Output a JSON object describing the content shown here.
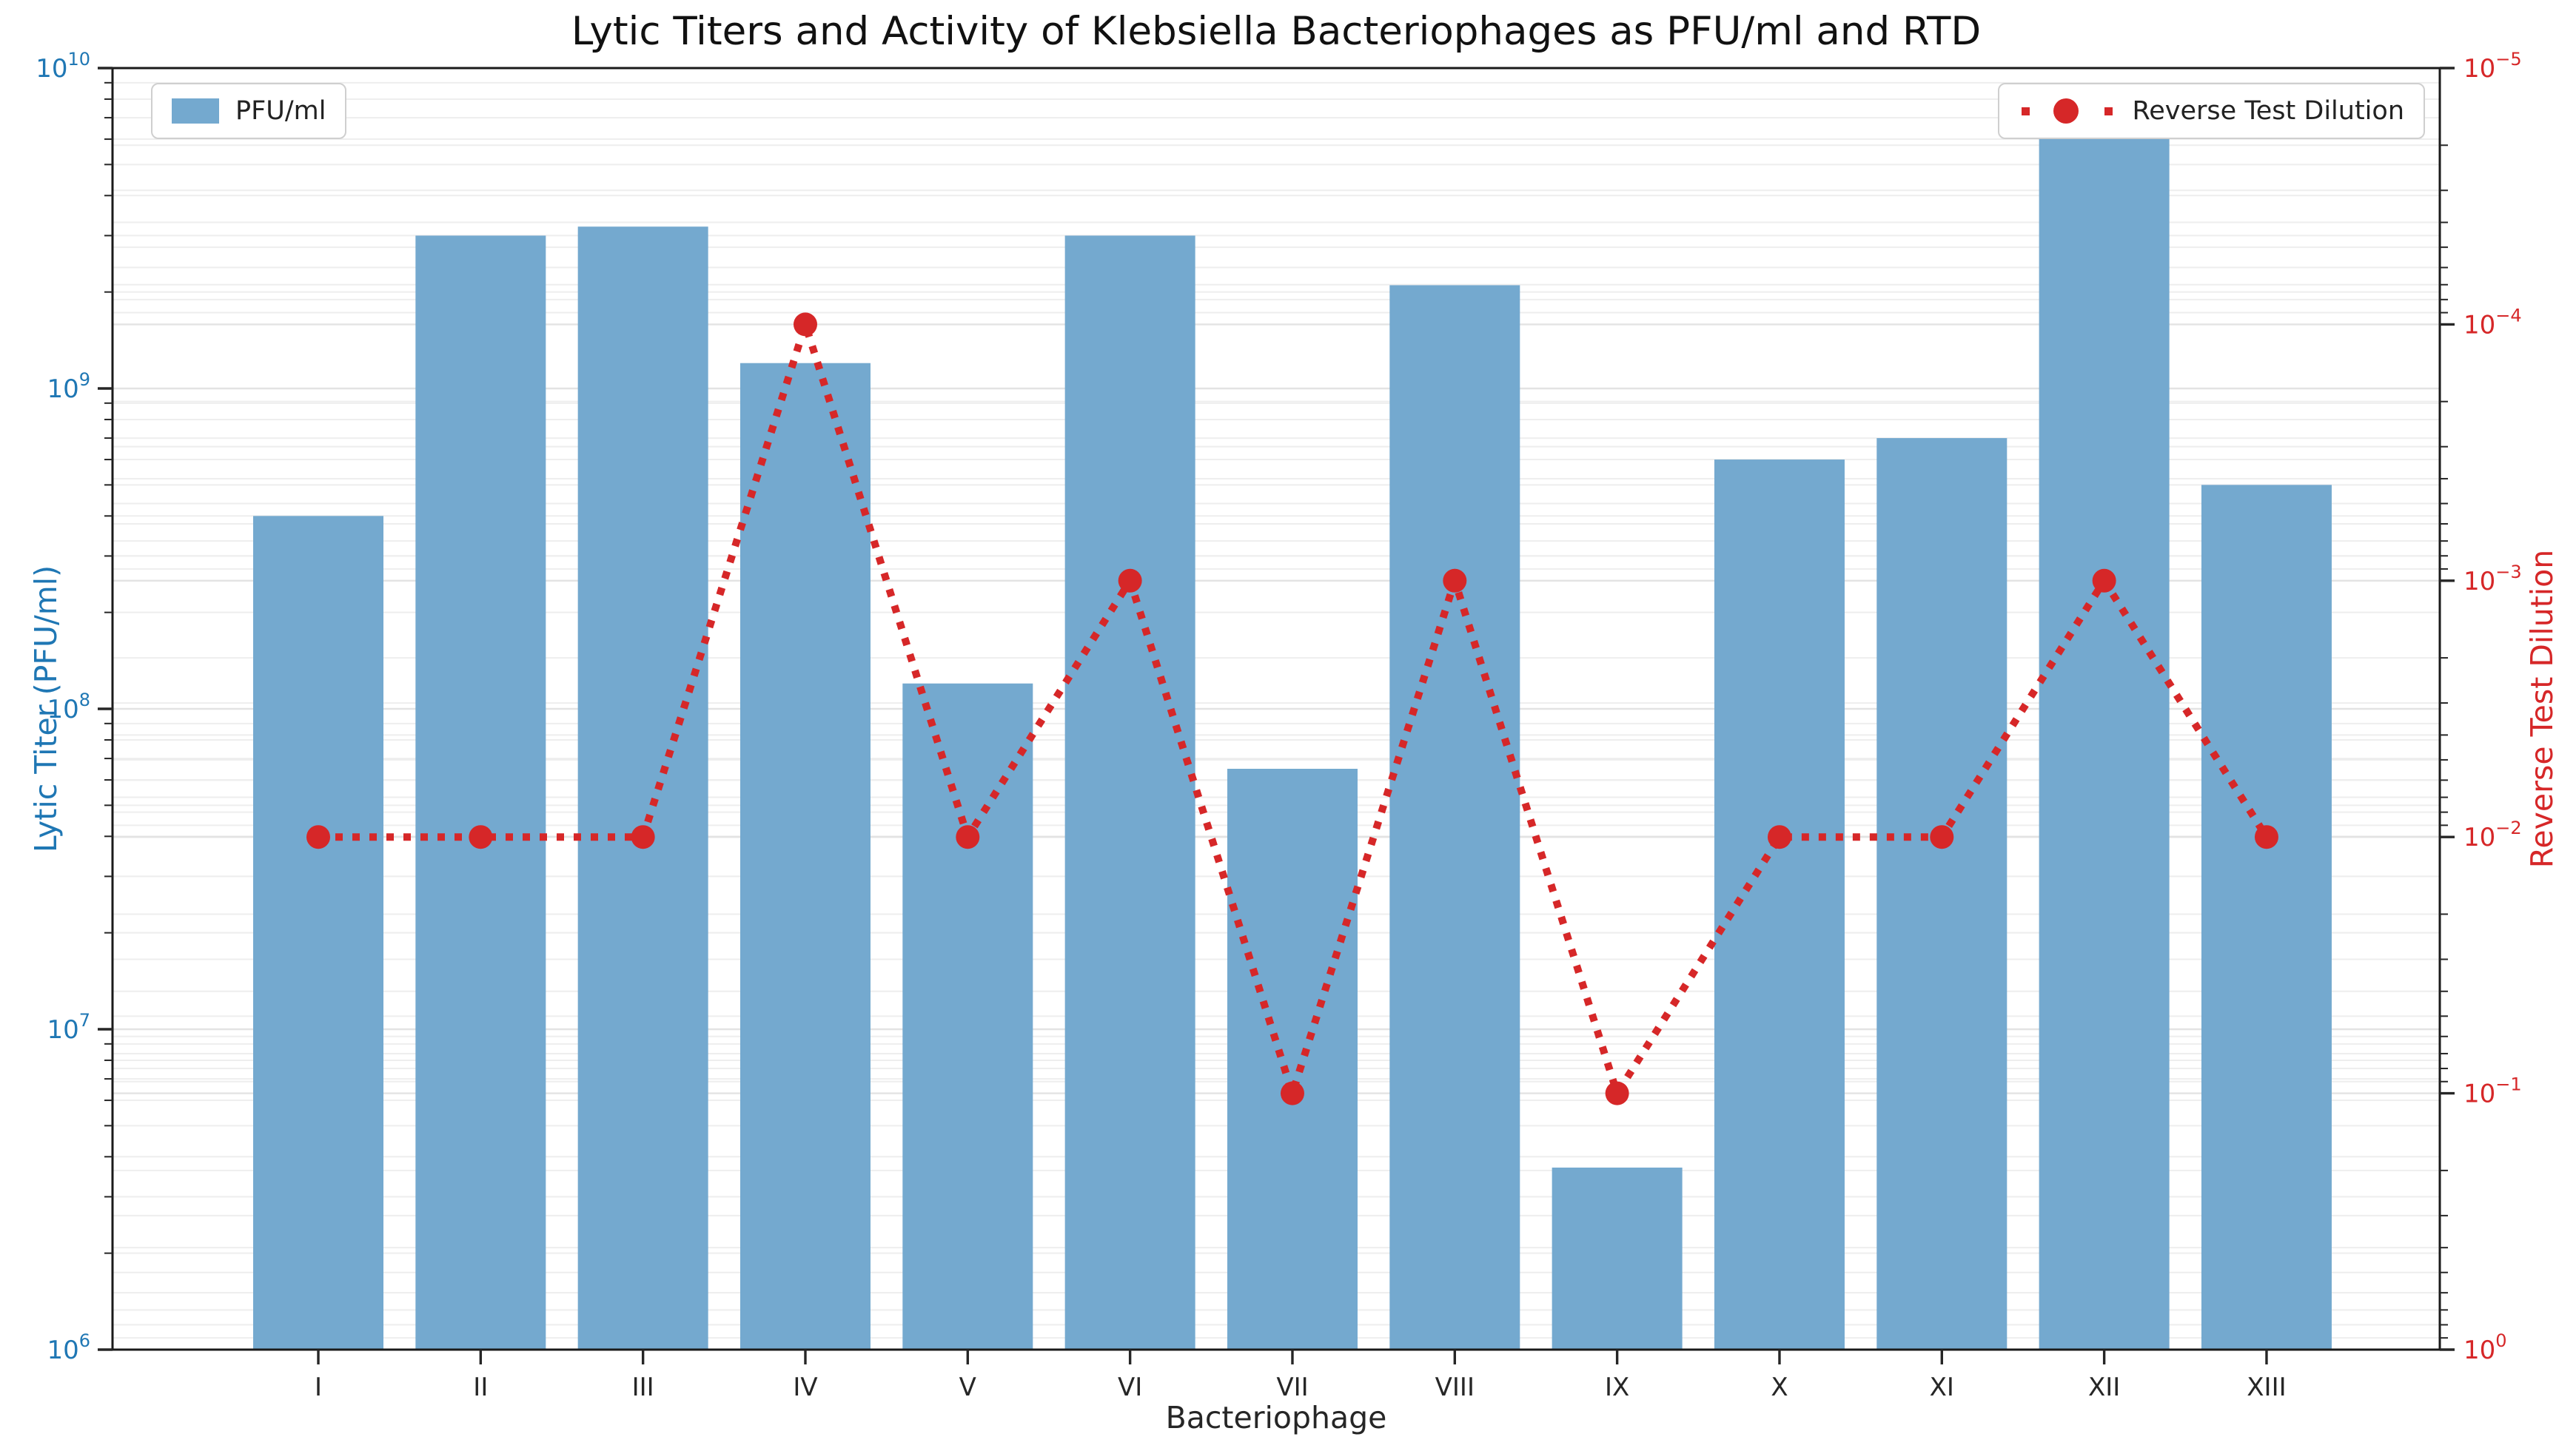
{
  "title": "Lytic Titers and Activity of Klebsiella Bacteriophages as PFU/ml and RTD",
  "colors": {
    "bar": "#74a9cf",
    "line": "#d62728",
    "left_axis_text": "#1f77b4",
    "right_axis_text": "#d62728",
    "x_axis_text": "#262626",
    "grid_minor": "#eeeeee",
    "grid_major": "#e3e3e3",
    "spine": "#1a1a1a",
    "tick": "#262626"
  },
  "legend_left": {
    "label": "PFU/ml"
  },
  "legend_right": {
    "label": "Reverse Test Dilution"
  },
  "axes": {
    "x_label": "Bacteriophage",
    "y_left": {
      "label": "Lytic Titer (PFU/ml)",
      "ticks": [
        {
          "v": 1000000.0,
          "exp": "6"
        },
        {
          "v": 10000000.0,
          "exp": "7"
        },
        {
          "v": 100000000.0,
          "exp": "8"
        },
        {
          "v": 1000000000.0,
          "exp": "9"
        },
        {
          "v": 10000000000.0,
          "exp": "10"
        }
      ]
    },
    "y_right": {
      "label": "Reverse Test Dilution",
      "ticks": [
        {
          "v": 1,
          "exp": "0"
        },
        {
          "v": 0.1,
          "exp": "−1"
        },
        {
          "v": 0.01,
          "exp": "−2"
        },
        {
          "v": 0.001,
          "exp": "−3"
        },
        {
          "v": 0.0001,
          "exp": "−4"
        },
        {
          "v": 1e-05,
          "exp": "−5"
        }
      ]
    }
  },
  "chart_data": {
    "type": "bar",
    "subtype": "dual-axis bar + dotted line, both log scales",
    "title": "Lytic Titers and Activity of Klebsiella Bacteriophages as PFU/ml and RTD",
    "xlabel": "Bacteriophage",
    "ylabel_left": "Lytic Titer (PFU/ml)",
    "ylabel_right": "Reverse Test Dilution",
    "categories": [
      "I",
      "II",
      "III",
      "IV",
      "V",
      "VI",
      "VII",
      "VIII",
      "IX",
      "X",
      "XI",
      "XII",
      "XIII"
    ],
    "series": [
      {
        "name": "PFU/ml",
        "type": "bar",
        "axis": "left",
        "values": [
          400000000.0,
          3000000000.0,
          3200000000.0,
          1200000000.0,
          120000000.0,
          3000000000.0,
          65000000.0,
          2100000000.0,
          3700000.0,
          600000000.0,
          700000000.0,
          6300000000.0,
          500000000.0
        ]
      },
      {
        "name": "Reverse Test Dilution",
        "type": "line-dotted-with-markers",
        "axis": "right",
        "values": [
          0.01,
          0.01,
          0.01,
          0.0001,
          0.01,
          0.001,
          0.1,
          0.001,
          0.1,
          0.01,
          0.01,
          0.001,
          0.01
        ]
      }
    ],
    "y_left_axis": {
      "scale": "log",
      "min": 1000000.0,
      "max": 10000000000.0,
      "tick_labels": [
        "10⁶",
        "10⁷",
        "10⁸",
        "10⁹",
        "10¹⁰"
      ]
    },
    "y_right_axis": {
      "scale": "log",
      "bottom": 1,
      "top": 1e-05,
      "tick_labels": [
        "10⁰",
        "10⁻¹",
        "10⁻²",
        "10⁻³",
        "10⁻⁴",
        "10⁻⁵"
      ]
    },
    "grid": "both axes, faint horizontal log minor/major gridlines",
    "legend_positions": {
      "PFU/ml": "upper left",
      "Reverse Test Dilution": "upper right"
    }
  }
}
